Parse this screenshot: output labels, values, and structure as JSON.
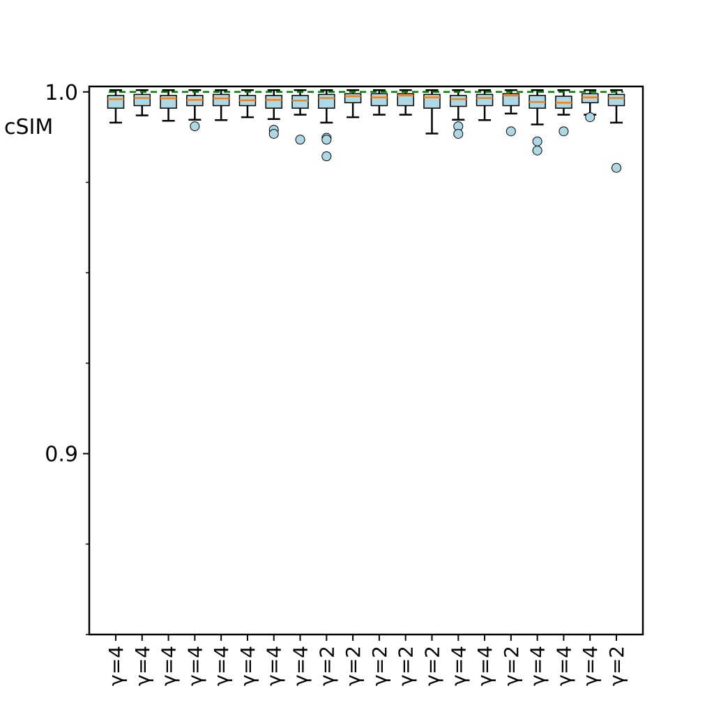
{
  "chart_data": {
    "type": "box",
    "ylabel": "cSIM",
    "ylim": [
      0.85,
      1.0015
    ],
    "y_major_ticks": [
      {
        "value": 0.9,
        "label": "0.9"
      },
      {
        "value": 1.0,
        "label": "1.0"
      }
    ],
    "y_minor_ticks": [
      0.85,
      0.875,
      0.925,
      0.95,
      0.975
    ],
    "reference_line": {
      "value": 1.0,
      "color": "#008000",
      "style": "dashed"
    },
    "colors": {
      "box_fill": "#add8e6",
      "median": "#ff7f0e",
      "outlier_fill": "#add8e6"
    },
    "categories": [
      "γ=4",
      "γ=4",
      "γ=4",
      "γ=4",
      "γ=4",
      "γ=4",
      "γ=4",
      "γ=4",
      "γ=2",
      "γ=2",
      "γ=2",
      "γ=2",
      "γ=2",
      "γ=4",
      "γ=4",
      "γ=2",
      "γ=4",
      "γ=4",
      "γ=4",
      "γ=2"
    ],
    "boxes": [
      {
        "whislo": 0.9915,
        "q1": 0.9955,
        "median": 0.998,
        "q3": 0.999,
        "whishi": 1.0005,
        "fliers": []
      },
      {
        "whislo": 0.9935,
        "q1": 0.9962,
        "median": 0.9983,
        "q3": 0.9993,
        "whishi": 1.0005,
        "fliers": []
      },
      {
        "whislo": 0.992,
        "q1": 0.9955,
        "median": 0.9982,
        "q3": 0.999,
        "whishi": 1.0005,
        "fliers": []
      },
      {
        "whislo": 0.9923,
        "q1": 0.9962,
        "median": 0.9978,
        "q3": 0.999,
        "whishi": 1.0005,
        "fliers": [
          0.9905
        ]
      },
      {
        "whislo": 0.9922,
        "q1": 0.9962,
        "median": 0.9982,
        "q3": 0.9993,
        "whishi": 1.0005,
        "fliers": []
      },
      {
        "whislo": 0.993,
        "q1": 0.9962,
        "median": 0.9977,
        "q3": 0.999,
        "whishi": 1.0005,
        "fliers": []
      },
      {
        "whislo": 0.9925,
        "q1": 0.9955,
        "median": 0.9978,
        "q3": 0.999,
        "whishi": 1.0005,
        "fliers": [
          0.9895,
          0.9884
        ]
      },
      {
        "whislo": 0.9937,
        "q1": 0.9955,
        "median": 0.9976,
        "q3": 0.999,
        "whishi": 1.0005,
        "fliers": [
          0.9868
        ]
      },
      {
        "whislo": 0.9915,
        "q1": 0.9955,
        "median": 0.9983,
        "q3": 0.9993,
        "whishi": 1.0005,
        "fliers": [
          0.9873,
          0.9868,
          0.9822
        ]
      },
      {
        "whislo": 0.993,
        "q1": 0.997,
        "median": 0.9988,
        "q3": 0.9995,
        "whishi": 1.0005,
        "fliers": []
      },
      {
        "whislo": 0.9937,
        "q1": 0.9962,
        "median": 0.9985,
        "q3": 0.9995,
        "whishi": 1.0005,
        "fliers": []
      },
      {
        "whislo": 0.9937,
        "q1": 0.9962,
        "median": 0.999,
        "q3": 0.9995,
        "whishi": 1.0005,
        "fliers": []
      },
      {
        "whislo": 0.9885,
        "q1": 0.9955,
        "median": 0.9985,
        "q3": 0.9993,
        "whishi": 1.0005,
        "fliers": []
      },
      {
        "whislo": 0.9923,
        "q1": 0.996,
        "median": 0.998,
        "q3": 0.999,
        "whishi": 1.0005,
        "fliers": [
          0.9905,
          0.9884
        ]
      },
      {
        "whislo": 0.9922,
        "q1": 0.9962,
        "median": 0.9983,
        "q3": 0.9993,
        "whishi": 1.0005,
        "fliers": []
      },
      {
        "whislo": 0.994,
        "q1": 0.9962,
        "median": 0.999,
        "q3": 0.9995,
        "whishi": 1.0005,
        "fliers": [
          0.9891
        ]
      },
      {
        "whislo": 0.991,
        "q1": 0.9955,
        "median": 0.9972,
        "q3": 0.999,
        "whishi": 1.0005,
        "fliers": [
          0.9863,
          0.9838
        ]
      },
      {
        "whislo": 0.9937,
        "q1": 0.9955,
        "median": 0.997,
        "q3": 0.9988,
        "whishi": 1.0005,
        "fliers": [
          0.9891
        ]
      },
      {
        "whislo": 0.9937,
        "q1": 0.997,
        "median": 0.9985,
        "q3": 0.9995,
        "whishi": 1.0005,
        "fliers": [
          0.993
        ]
      },
      {
        "whislo": 0.9915,
        "q1": 0.9962,
        "median": 0.9983,
        "q3": 0.9993,
        "whishi": 1.0005,
        "fliers": [
          0.979
        ]
      }
    ]
  }
}
